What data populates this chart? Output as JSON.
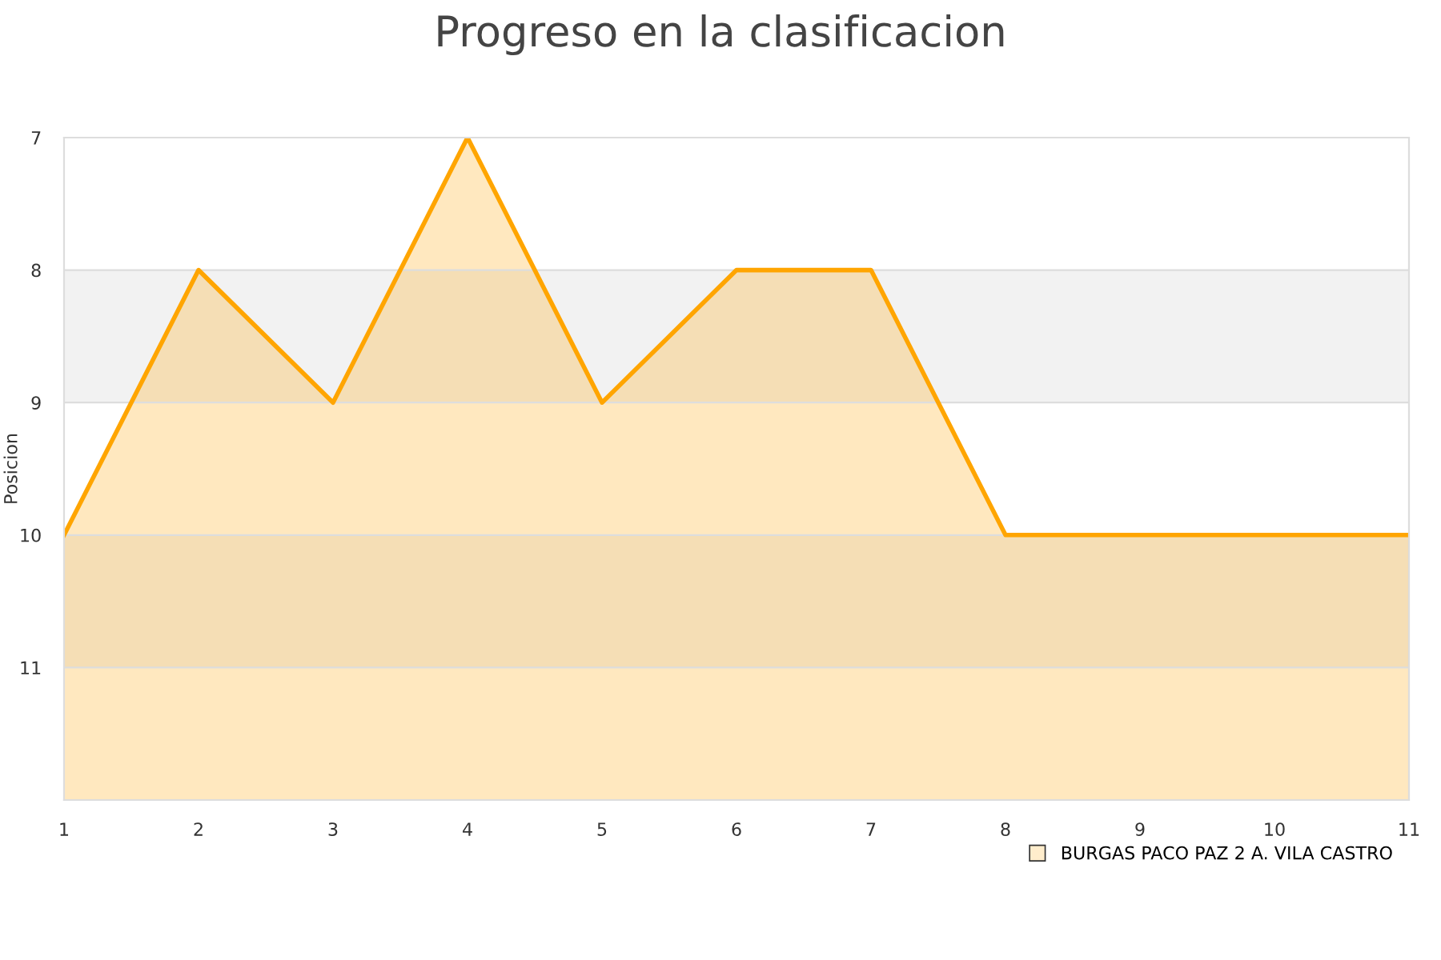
{
  "chart_data": {
    "type": "area",
    "title": "Progreso en la clasificacion",
    "ylabel": "Posicion",
    "x": [
      1,
      2,
      3,
      4,
      5,
      6,
      7,
      8,
      9,
      10,
      11
    ],
    "series": [
      {
        "name": "BURGAS PACO PAZ 2 A. VILA CASTRO",
        "color": "#ffa500",
        "values": [
          10,
          8,
          9,
          7,
          9,
          8,
          8,
          10,
          10,
          10,
          10
        ]
      }
    ],
    "xlim": [
      1,
      11
    ],
    "xticks": [
      1,
      2,
      3,
      4,
      5,
      6,
      7,
      8,
      9,
      10,
      11
    ],
    "ylim": [
      12,
      7
    ],
    "yticks": [
      7,
      8,
      9,
      10,
      11
    ],
    "bands": [
      {
        "axis": "y",
        "from": 8,
        "to": 9,
        "color": "#f2f2f2"
      },
      {
        "axis": "y",
        "from": 10,
        "to": 11,
        "color": "#f2f2f2"
      }
    ],
    "grid": "y",
    "legend": "bottom right"
  }
}
